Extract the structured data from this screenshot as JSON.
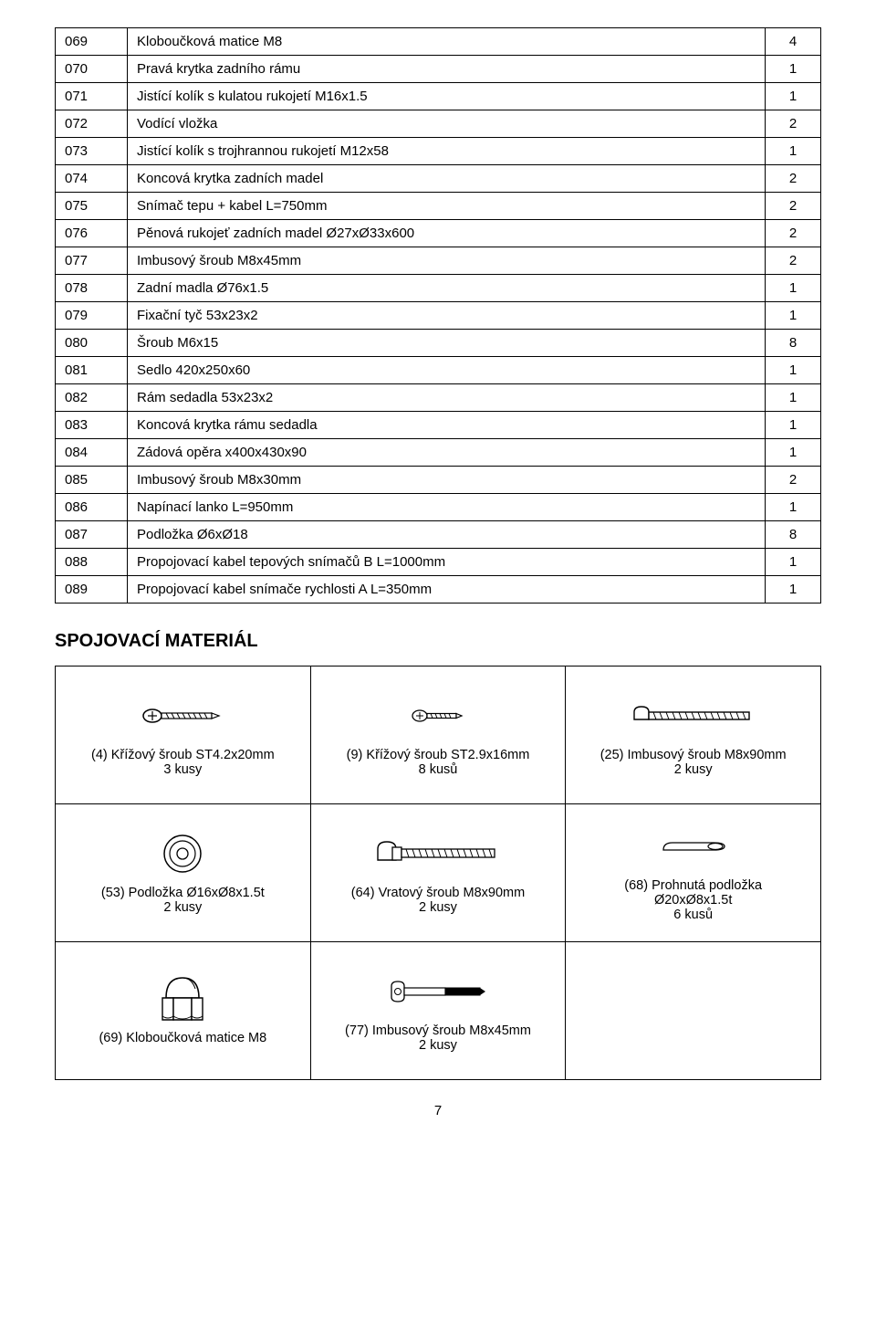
{
  "parts_rows": [
    {
      "num": "069",
      "desc": "Kloboučková matice M8",
      "qty": "4"
    },
    {
      "num": "070",
      "desc": "Pravá krytka zadního rámu",
      "qty": "1"
    },
    {
      "num": "071",
      "desc": "Jistící kolík s kulatou rukojetí M16x1.5",
      "qty": "1"
    },
    {
      "num": "072",
      "desc": "Vodící vložka",
      "qty": "2"
    },
    {
      "num": "073",
      "desc": "Jistící kolík s trojhrannou rukojetí M12x58",
      "qty": "1"
    },
    {
      "num": "074",
      "desc": "Koncová krytka zadních madel",
      "qty": "2"
    },
    {
      "num": "075",
      "desc": "Snímač tepu + kabel L=750mm",
      "qty": "2"
    },
    {
      "num": "076",
      "desc": "Pěnová rukojeť zadních madel Ø27xØ33x600",
      "qty": "2"
    },
    {
      "num": "077",
      "desc": "Imbusový šroub M8x45mm",
      "qty": "2"
    },
    {
      "num": "078",
      "desc": "Zadní madla Ø76x1.5",
      "qty": "1"
    },
    {
      "num": "079",
      "desc": "Fixační tyč 53x23x2",
      "qty": "1"
    },
    {
      "num": "080",
      "desc": "Šroub M6x15",
      "qty": "8"
    },
    {
      "num": "081",
      "desc": "Sedlo 420x250x60",
      "qty": "1"
    },
    {
      "num": "082",
      "desc": "Rám sedadla 53x23x2",
      "qty": "1"
    },
    {
      "num": "083",
      "desc": "Koncová krytka rámu sedadla",
      "qty": "1"
    },
    {
      "num": "084",
      "desc": "Zádová opěra x400x430x90",
      "qty": "1"
    },
    {
      "num": "085",
      "desc": "Imbusový šroub M8x30mm",
      "qty": "2"
    },
    {
      "num": "086",
      "desc": "Napínací lanko L=950mm",
      "qty": "1"
    },
    {
      "num": "087",
      "desc": "Podložka Ø6xØ18",
      "qty": "8"
    },
    {
      "num": "088",
      "desc": "Propojovací kabel tepových snímačů B L=1000mm",
      "qty": "1"
    },
    {
      "num": "089",
      "desc": "Propojovací kabel snímače rychlosti A L=350mm",
      "qty": "1"
    }
  ],
  "section_title": "SPOJOVACÍ MATERIÁL",
  "materials": {
    "r1c1": {
      "l1": "(4) Křížový šroub ST4.2x20mm",
      "l2": "3 kusy"
    },
    "r1c2": {
      "l1": "(9) Křížový šroub ST2.9x16mm",
      "l2": "8 kusů"
    },
    "r1c3": {
      "l1": "(25) Imbusový šroub M8x90mm",
      "l2": "2 kusy"
    },
    "r2c1": {
      "l1": "(53) Podložka Ø16xØ8x1.5t",
      "l2": "2 kusy"
    },
    "r2c2": {
      "l1": "(64) Vratový šroub M8x90mm",
      "l2": "2 kusy"
    },
    "r2c3": {
      "l1": "(68) Prohnutá podložka",
      "l2": "Ø20xØ8x1.5t",
      "l3": "6 kusů"
    },
    "r3c1": {
      "l1": "(69) Kloboučková matice M8"
    },
    "r3c2": {
      "l1": "(77) Imbusový šroub M8x45mm",
      "l2": "2 kusy"
    }
  },
  "page_number": "7"
}
